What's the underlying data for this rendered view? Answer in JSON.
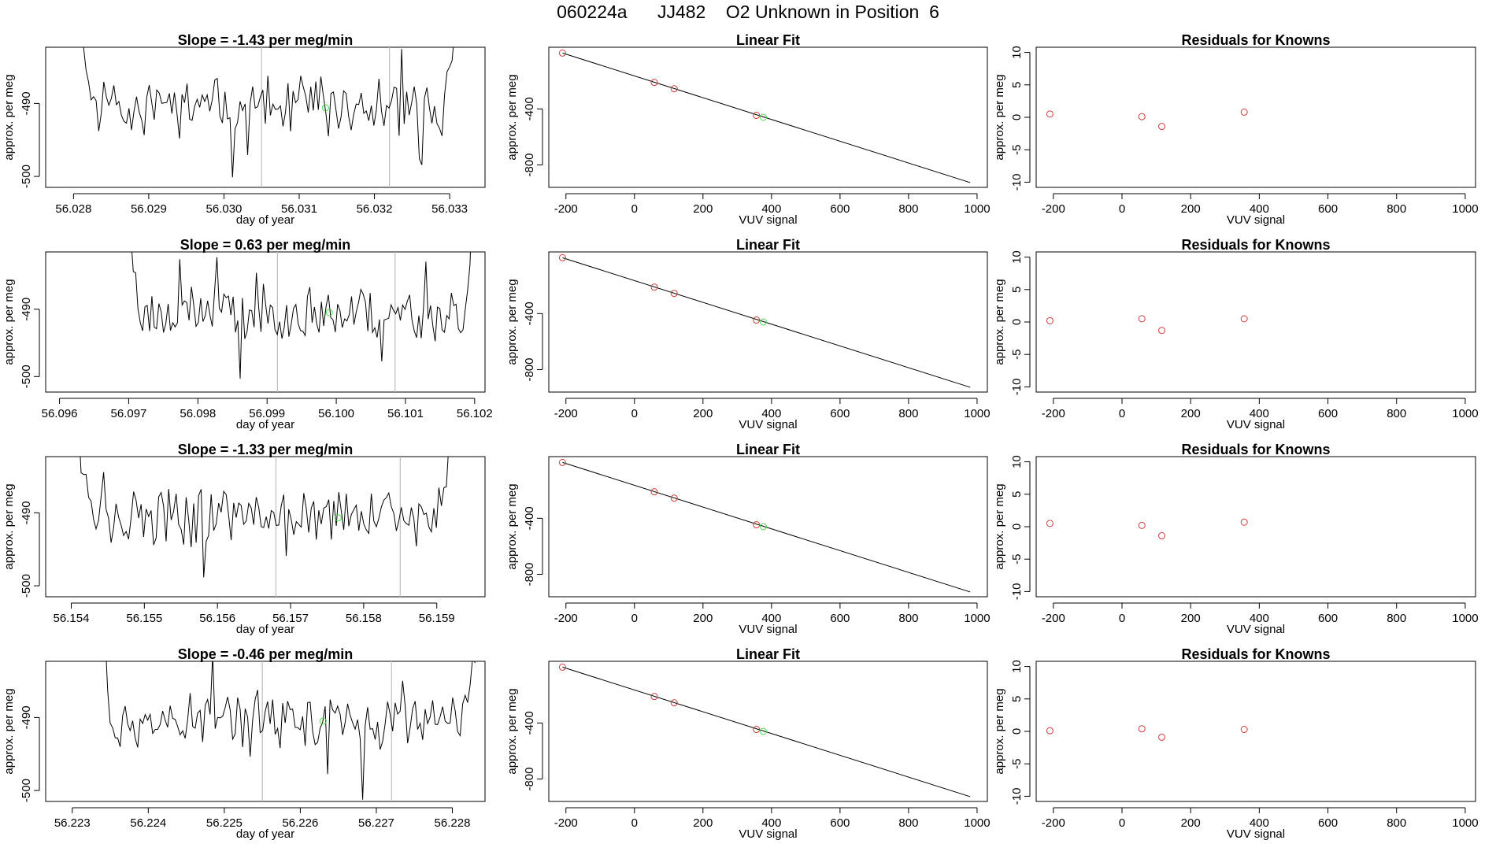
{
  "page": {
    "title": "060224a      JJ482    O2 Unknown in Position  6"
  },
  "colors": {
    "series_line": "#000000",
    "known_points": "#cd3b3b",
    "unknown_point": "#4cd94c",
    "window_lines": "#bebebe",
    "frame": "#000000"
  },
  "chart_data": [
    {
      "type": "line",
      "row": 0,
      "panel": "time-series",
      "title": "Slope =  -1.43  per meg/min",
      "xlabel": "day of year",
      "ylabel": "approx. per meg",
      "xlim": [
        56.02763,
        56.03347
      ],
      "ylim": [
        -501.5,
        -482.3
      ],
      "xticks": [
        56.028,
        56.029,
        56.03,
        56.031,
        56.032,
        56.033
      ],
      "tick_labels_x": [
        "56.028",
        "56.029",
        "56.030",
        "56.031",
        "56.032",
        "56.033"
      ],
      "yticks": [
        -490,
        -500
      ],
      "tick_labels_y": [
        "-490",
        "-500"
      ],
      "window_markers": [
        56.0305,
        56.0322
      ],
      "unknown_point": {
        "x": 56.03135,
        "y": -490.6
      },
      "start": 56.0281,
      "end": 56.0331,
      "n_points": 150,
      "seed": 11
    },
    {
      "type": "scatter",
      "row": 0,
      "panel": "linear-fit",
      "title": "Linear Fit",
      "xlabel": "VUV signal",
      "ylabel": "approx. per meg",
      "xlim": [
        -250,
        1030
      ],
      "ylim": [
        -960,
        40
      ],
      "xticks": [
        -200,
        0,
        200,
        400,
        600,
        800,
        1000
      ],
      "tick_labels_x": [
        "-200",
        "0",
        "200",
        "400",
        "600",
        "800",
        "1000"
      ],
      "yticks": [
        -400,
        -800
      ],
      "tick_labels_y": [
        "-400",
        "-800"
      ],
      "fit_line": {
        "x": [
          -210,
          980
        ],
        "y": [
          -1.5,
          -926
        ]
      },
      "known_points": {
        "x": [
          -210,
          58,
          116,
          356
        ],
        "y": [
          -1.5,
          -211,
          -256,
          -446
        ]
      },
      "unknown_point": {
        "x": 376,
        "y": -460
      }
    },
    {
      "type": "scatter",
      "row": 0,
      "panel": "residuals",
      "title": "Residuals for Knowns",
      "xlabel": "VUV signal",
      "ylabel": "approx. per meg",
      "xlim": [
        -250,
        1030
      ],
      "ylim": [
        -10.8,
        10.8
      ],
      "xticks": [
        -200,
        0,
        200,
        400,
        600,
        800,
        1000
      ],
      "tick_labels_x": [
        "-200",
        "0",
        "200",
        "400",
        "600",
        "800",
        "1000"
      ],
      "yticks": [
        10,
        5,
        0,
        -5,
        -10
      ],
      "tick_labels_y": [
        "10",
        "5",
        "0",
        "-5",
        "-10"
      ],
      "points": {
        "x": [
          -210,
          58,
          116,
          356
        ],
        "y": [
          0.5,
          0.1,
          -1.4,
          0.8
        ]
      }
    },
    {
      "type": "line",
      "row": 1,
      "panel": "time-series",
      "title": "Slope =  0.63  per meg/min",
      "xlabel": "day of year",
      "ylabel": "approx. per meg",
      "xlim": [
        56.0958,
        56.10215
      ],
      "ylim": [
        -502.3,
        -481.5
      ],
      "xticks": [
        56.096,
        56.097,
        56.098,
        56.099,
        56.1,
        56.101,
        56.102
      ],
      "tick_labels_x": [
        "56.096",
        "56.097",
        "56.098",
        "56.099",
        "56.100",
        "56.101",
        "56.102"
      ],
      "yticks": [
        -490,
        -500
      ],
      "tick_labels_y": [
        "-490",
        "-500"
      ],
      "window_markers": [
        56.09915,
        56.10085
      ],
      "unknown_point": {
        "x": 56.0999,
        "y": -490.5
      },
      "start": 56.097,
      "end": 56.102,
      "n_points": 150,
      "seed": 23
    },
    {
      "type": "scatter",
      "row": 1,
      "panel": "linear-fit",
      "title": "Linear Fit",
      "xlabel": "VUV signal",
      "ylabel": "approx. per meg",
      "xlim": [
        -250,
        1030
      ],
      "ylim": [
        -960,
        40
      ],
      "xticks": [
        -200,
        0,
        200,
        400,
        600,
        800,
        1000
      ],
      "tick_labels_x": [
        "-200",
        "0",
        "200",
        "400",
        "600",
        "800",
        "1000"
      ],
      "yticks": [
        -400,
        -800
      ],
      "tick_labels_y": [
        "-400",
        "-800"
      ],
      "fit_line": {
        "x": [
          -210,
          980
        ],
        "y": [
          -1.5,
          -926
        ]
      },
      "known_points": {
        "x": [
          -210,
          58,
          116,
          356
        ],
        "y": [
          -1.5,
          -211,
          -256,
          -446
        ]
      },
      "unknown_point": {
        "x": 376,
        "y": -460
      }
    },
    {
      "type": "scatter",
      "row": 1,
      "panel": "residuals",
      "title": "Residuals for Knowns",
      "xlabel": "VUV signal",
      "ylabel": "approx. per meg",
      "xlim": [
        -250,
        1030
      ],
      "ylim": [
        -10.8,
        10.8
      ],
      "xticks": [
        -200,
        0,
        200,
        400,
        600,
        800,
        1000
      ],
      "tick_labels_x": [
        "-200",
        "0",
        "200",
        "400",
        "600",
        "800",
        "1000"
      ],
      "yticks": [
        10,
        5,
        0,
        -5,
        -10
      ],
      "tick_labels_y": [
        "10",
        "5",
        "0",
        "-5",
        "-10"
      ],
      "points": {
        "x": [
          -210,
          58,
          116,
          356
        ],
        "y": [
          0.2,
          0.5,
          -1.3,
          0.5
        ]
      }
    },
    {
      "type": "line",
      "row": 2,
      "panel": "time-series",
      "title": "Slope =  -1.33  per meg/min",
      "xlabel": "day of year",
      "ylabel": "approx. per meg",
      "xlim": [
        56.15365,
        56.15966
      ],
      "ylim": [
        -501.5,
        -482.3
      ],
      "xticks": [
        56.154,
        56.155,
        56.156,
        56.157,
        56.158,
        56.159
      ],
      "tick_labels_x": [
        "56.154",
        "56.155",
        "56.156",
        "56.157",
        "56.158",
        "56.159"
      ],
      "yticks": [
        -490,
        -500
      ],
      "tick_labels_y": [
        "-490",
        "-500"
      ],
      "window_markers": [
        56.1568,
        56.1585
      ],
      "unknown_point": {
        "x": 56.15765,
        "y": -490.7
      },
      "start": 56.1541,
      "end": 56.1592,
      "n_points": 150,
      "seed": 37
    },
    {
      "type": "scatter",
      "row": 2,
      "panel": "linear-fit",
      "title": "Linear Fit",
      "xlabel": "VUV signal",
      "ylabel": "approx. per meg",
      "xlim": [
        -250,
        1030
      ],
      "ylim": [
        -960,
        40
      ],
      "xticks": [
        -200,
        0,
        200,
        400,
        600,
        800,
        1000
      ],
      "tick_labels_x": [
        "-200",
        "0",
        "200",
        "400",
        "600",
        "800",
        "1000"
      ],
      "yticks": [
        -400,
        -800
      ],
      "tick_labels_y": [
        "-400",
        "-800"
      ],
      "fit_line": {
        "x": [
          -210,
          980
        ],
        "y": [
          -1.5,
          -926
        ]
      },
      "known_points": {
        "x": [
          -210,
          58,
          116,
          356
        ],
        "y": [
          -1.5,
          -211,
          -256,
          -446
        ]
      },
      "unknown_point": {
        "x": 376,
        "y": -460
      }
    },
    {
      "type": "scatter",
      "row": 2,
      "panel": "residuals",
      "title": "Residuals for Knowns",
      "xlabel": "VUV signal",
      "ylabel": "approx. per meg",
      "xlim": [
        -250,
        1030
      ],
      "ylim": [
        -10.8,
        10.8
      ],
      "xticks": [
        -200,
        0,
        200,
        400,
        600,
        800,
        1000
      ],
      "tick_labels_x": [
        "-200",
        "0",
        "200",
        "400",
        "600",
        "800",
        "1000"
      ],
      "yticks": [
        10,
        5,
        0,
        -5,
        -10
      ],
      "tick_labels_y": [
        "10",
        "5",
        "0",
        "-5",
        "-10"
      ],
      "points": {
        "x": [
          -210,
          58,
          116,
          356
        ],
        "y": [
          0.5,
          0.2,
          -1.4,
          0.7
        ]
      }
    },
    {
      "type": "line",
      "row": 3,
      "panel": "time-series",
      "title": "Slope =  -0.46  per meg/min",
      "xlabel": "day of year",
      "ylabel": "approx. per meg",
      "xlim": [
        56.22265,
        56.22843
      ],
      "ylim": [
        -501.5,
        -482.3
      ],
      "xticks": [
        56.223,
        56.224,
        56.225,
        56.226,
        56.227,
        56.228
      ],
      "tick_labels_x": [
        "56.223",
        "56.224",
        "56.225",
        "56.226",
        "56.227",
        "56.228"
      ],
      "yticks": [
        -490,
        -500
      ],
      "tick_labels_y": [
        "-490",
        "-500"
      ],
      "window_markers": [
        56.2255,
        56.2272
      ],
      "unknown_point": {
        "x": 56.2263,
        "y": -490.5
      },
      "start": 56.2234,
      "end": 56.2283,
      "n_points": 150,
      "seed": 53
    },
    {
      "type": "scatter",
      "row": 3,
      "panel": "linear-fit",
      "title": "Linear Fit",
      "xlabel": "VUV signal",
      "ylabel": "approx. per meg",
      "xlim": [
        -250,
        1030
      ],
      "ylim": [
        -960,
        40
      ],
      "xticks": [
        -200,
        0,
        200,
        400,
        600,
        800,
        1000
      ],
      "tick_labels_x": [
        "-200",
        "0",
        "200",
        "400",
        "600",
        "800",
        "1000"
      ],
      "yticks": [
        -400,
        -800
      ],
      "tick_labels_y": [
        "-400",
        "-800"
      ],
      "fit_line": {
        "x": [
          -210,
          980
        ],
        "y": [
          -1.5,
          -926
        ]
      },
      "known_points": {
        "x": [
          -210,
          58,
          116,
          356
        ],
        "y": [
          -1.5,
          -211,
          -256,
          -446
        ]
      },
      "unknown_point": {
        "x": 376,
        "y": -460
      }
    },
    {
      "type": "scatter",
      "row": 3,
      "panel": "residuals",
      "title": "Residuals for Knowns",
      "xlabel": "VUV signal",
      "ylabel": "approx. per meg",
      "xlim": [
        -250,
        1030
      ],
      "ylim": [
        -10.8,
        10.8
      ],
      "xticks": [
        -200,
        0,
        200,
        400,
        600,
        800,
        1000
      ],
      "tick_labels_x": [
        "-200",
        "0",
        "200",
        "400",
        "600",
        "800",
        "1000"
      ],
      "yticks": [
        10,
        5,
        0,
        -5,
        -10
      ],
      "tick_labels_y": [
        "10",
        "5",
        "0",
        "-5",
        "-10"
      ],
      "points": {
        "x": [
          -210,
          58,
          116,
          356
        ],
        "y": [
          0.1,
          0.4,
          -0.9,
          0.3
        ]
      }
    }
  ]
}
